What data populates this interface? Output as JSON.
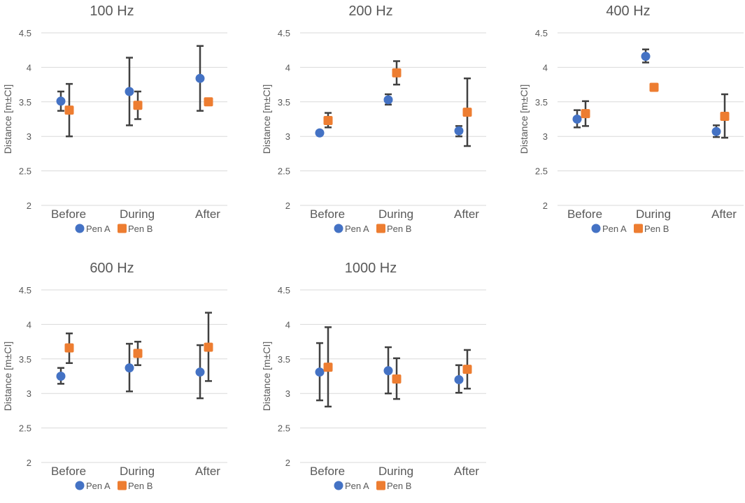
{
  "colors": {
    "pen_a": "#4472C4",
    "pen_b": "#ED7D31",
    "error_bar": "#404040",
    "grid": "#D9D9D9",
    "text": "#595959"
  },
  "chart_data": [
    {
      "type": "scatter",
      "title": "100 Hz",
      "ylabel": "Distance [m±CI]",
      "categories": [
        "Before",
        "During",
        "After"
      ],
      "ylim": [
        2,
        4.5
      ],
      "yticks": [
        "2",
        "2.5",
        "3",
        "3.5",
        "4",
        "4.5"
      ],
      "legend": [
        "Pen A",
        "Pen B"
      ],
      "series": [
        {
          "name": "Pen A",
          "marker": "circle",
          "values": [
            3.51,
            3.65,
            3.84
          ],
          "err_low": [
            3.37,
            3.16,
            3.37
          ],
          "err_high": [
            3.65,
            4.14,
            4.31
          ]
        },
        {
          "name": "Pen B",
          "marker": "square",
          "values": [
            3.38,
            3.45,
            3.5
          ],
          "err_low": [
            3.0,
            3.25,
            null
          ],
          "err_high": [
            3.76,
            3.65,
            null
          ]
        }
      ]
    },
    {
      "type": "scatter",
      "title": "200 Hz",
      "ylabel": "Distance [m±CI]",
      "categories": [
        "Before",
        "During",
        "After"
      ],
      "ylim": [
        2,
        4.5
      ],
      "yticks": [
        "2",
        "2.5",
        "3",
        "3.5",
        "4",
        "4.5"
      ],
      "legend": [
        "Pen A",
        "Pen B"
      ],
      "series": [
        {
          "name": "Pen A",
          "marker": "circle",
          "values": [
            3.05,
            3.53,
            3.08
          ],
          "err_low": [
            null,
            3.46,
            3.0
          ],
          "err_high": [
            null,
            3.61,
            3.15
          ]
        },
        {
          "name": "Pen B",
          "marker": "square",
          "values": [
            3.23,
            3.92,
            3.35
          ],
          "err_low": [
            3.13,
            3.75,
            2.86
          ],
          "err_high": [
            3.34,
            4.09,
            3.84
          ]
        }
      ]
    },
    {
      "type": "scatter",
      "title": "400 Hz",
      "ylabel": "Distance [m±CI]",
      "categories": [
        "Before",
        "During",
        "After"
      ],
      "ylim": [
        2,
        4.5
      ],
      "yticks": [
        "2",
        "2.5",
        "3",
        "3.5",
        "4",
        "4.5"
      ],
      "legend": [
        "Pen A",
        "Pen B"
      ],
      "series": [
        {
          "name": "Pen A",
          "marker": "circle",
          "values": [
            3.25,
            4.16,
            3.07
          ],
          "err_low": [
            3.13,
            4.07,
            2.99
          ],
          "err_high": [
            3.38,
            4.26,
            3.16
          ]
        },
        {
          "name": "Pen B",
          "marker": "square",
          "values": [
            3.33,
            3.71,
            3.29
          ],
          "err_low": [
            3.15,
            null,
            2.98
          ],
          "err_high": [
            3.51,
            null,
            3.61
          ]
        }
      ]
    },
    {
      "type": "scatter",
      "title": "600 Hz",
      "ylabel": "Distance [m±CI]",
      "categories": [
        "Before",
        "During",
        "After"
      ],
      "ylim": [
        2,
        4.5
      ],
      "yticks": [
        "2",
        "2.5",
        "3",
        "3.5",
        "4",
        "4.5"
      ],
      "legend": [
        "Pen A",
        "Pen B"
      ],
      "series": [
        {
          "name": "Pen A",
          "marker": "circle",
          "values": [
            3.25,
            3.37,
            3.31
          ],
          "err_low": [
            3.14,
            3.03,
            2.93
          ],
          "err_high": [
            3.37,
            3.72,
            3.7
          ]
        },
        {
          "name": "Pen B",
          "marker": "square",
          "values": [
            3.66,
            3.58,
            3.67
          ],
          "err_low": [
            3.44,
            3.41,
            3.18
          ],
          "err_high": [
            3.87,
            3.75,
            4.17
          ]
        }
      ]
    },
    {
      "type": "scatter",
      "title": "1000 Hz",
      "ylabel": "Distance [m±CI]",
      "categories": [
        "Before",
        "During",
        "After"
      ],
      "ylim": [
        2,
        4.5
      ],
      "yticks": [
        "2",
        "2.5",
        "3",
        "3.5",
        "4",
        "4.5"
      ],
      "legend": [
        "Pen A",
        "Pen B"
      ],
      "series": [
        {
          "name": "Pen A",
          "marker": "circle",
          "values": [
            3.31,
            3.33,
            3.2
          ],
          "err_low": [
            2.9,
            3.0,
            3.01
          ],
          "err_high": [
            3.73,
            3.67,
            3.41
          ]
        },
        {
          "name": "Pen B",
          "marker": "square",
          "values": [
            3.38,
            3.21,
            3.35
          ],
          "err_low": [
            2.81,
            2.92,
            3.07
          ],
          "err_high": [
            3.96,
            3.51,
            3.63
          ]
        }
      ]
    }
  ]
}
